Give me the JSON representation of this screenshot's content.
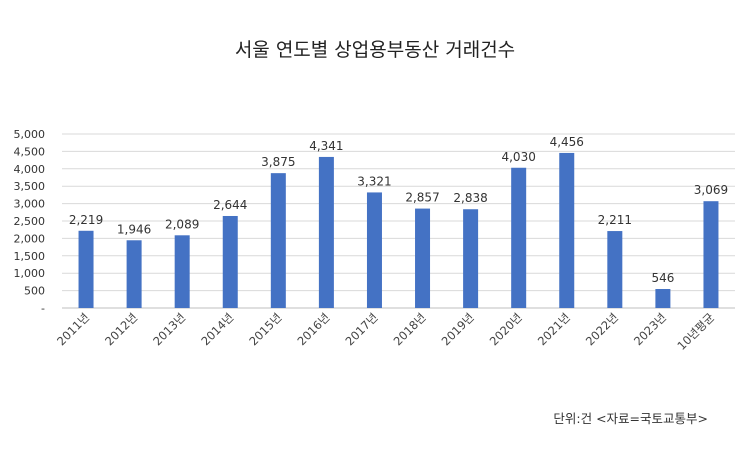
{
  "chart_data": {
    "type": "bar",
    "title": "서울 연도별 상업용부동산 거래건수",
    "categories": [
      "2011년",
      "2012년",
      "2013년",
      "2014년",
      "2015년",
      "2016년",
      "2017년",
      "2018년",
      "2019년",
      "2020년",
      "2021년",
      "2022년",
      "2023년",
      "10년평균"
    ],
    "values": [
      2219,
      1946,
      2089,
      2644,
      3875,
      4341,
      3321,
      2857,
      2838,
      4030,
      4456,
      2211,
      546,
      3069
    ],
    "data_labels": [
      "2,219",
      "1,946",
      "2,089",
      "2,644",
      "3,875",
      "4,341",
      "3,321",
      "2,857",
      "2,838",
      "4,030",
      "4,456",
      "2,211",
      "546",
      "3,069"
    ],
    "yticks": [
      0,
      500,
      1000,
      1500,
      2000,
      2500,
      3000,
      3500,
      4000,
      4500,
      5000
    ],
    "ytick_labels": [
      "-",
      "500",
      "1,000",
      "1,500",
      "2,000",
      "2,500",
      "3,000",
      "3,500",
      "4,000",
      "4,500",
      "5,000"
    ],
    "ylim": [
      0,
      5000
    ],
    "xlabel": "",
    "ylabel": "",
    "grid": true,
    "legend": "none",
    "bar_color": "#4472c4",
    "source_note": "단위:건 <자료=국토교통부>"
  }
}
